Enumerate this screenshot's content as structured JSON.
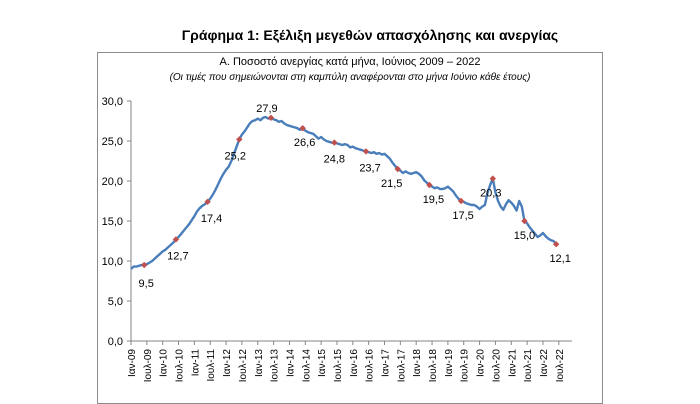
{
  "page": {
    "title": "Γράφημα 1: Εξέλιξη μεγεθών απασχόλησης και ανεργίας"
  },
  "chart_data": {
    "type": "line",
    "title": "Α. Ποσοστό ανεργίας κατά μήνα, Ιούνιος 2009 – 2022",
    "subtitle": "(Οι τιμές που σημειώνονται στη καμπύλη αναφέρονται στο μήνα Ιούνιο κάθε έτους)",
    "xlabel": "",
    "ylabel": "",
    "ylim": [
      0,
      30
    ],
    "yticks": [
      0,
      5,
      10,
      15,
      20,
      25,
      30
    ],
    "ytick_labels": [
      "0,0",
      "5,0",
      "10,0",
      "15,0",
      "20,0",
      "25,0",
      "30,0"
    ],
    "grid": false,
    "legend": "none",
    "line_color": "#4a7ebb",
    "marker_color": "#c0504d",
    "x_start": "Ιαν-09",
    "x_end": "Δεκ-22",
    "x_tick_labels": [
      "Ιαν-09",
      "Ιουλ-09",
      "Ιαν-10",
      "Ιουλ-10",
      "Ιαν-11",
      "Ιουλ-11",
      "Ιαν-12",
      "Ιουλ-12",
      "Ιαν-13",
      "Ιουλ-13",
      "Ιαν-14",
      "Ιουλ-14",
      "Ιαν-15",
      "Ιουλ-15",
      "Ιαν-16",
      "Ιουλ-16",
      "Ιαν-17",
      "Ιουλ-17",
      "Ιαν-18",
      "Ιουλ-18",
      "Ιαν-19",
      "Ιουλ-19",
      "Ιαν-20",
      "Ιουλ-20",
      "Ιαν-21",
      "Ιουλ-21",
      "Ιαν-22",
      "Ιουλ-22"
    ],
    "series": [
      {
        "values": [
          9.0,
          9.3,
          9.3,
          9.4,
          9.5,
          9.5,
          9.6,
          9.8,
          10.0,
          10.3,
          10.6,
          10.9,
          11.2,
          11.4,
          11.7,
          12.0,
          12.3,
          12.7,
          13.0,
          13.4,
          13.8,
          14.2,
          14.6,
          15.1,
          15.6,
          16.2,
          16.6,
          16.9,
          17.1,
          17.4,
          17.8,
          18.3,
          18.9,
          19.6,
          20.3,
          20.9,
          21.4,
          21.8,
          22.5,
          23.4,
          24.3,
          25.2,
          25.8,
          26.2,
          26.7,
          27.2,
          27.5,
          27.6,
          27.8,
          27.6,
          27.9,
          28.0,
          27.8,
          27.9,
          27.7,
          27.6,
          27.4,
          27.5,
          27.2,
          27.0,
          26.9,
          26.8,
          26.7,
          26.6,
          26.4,
          26.6,
          26.3,
          26.1,
          26.0,
          25.9,
          25.6,
          25.3,
          25.5,
          25.2,
          25.0,
          24.9,
          24.8,
          24.8,
          24.7,
          24.6,
          24.5,
          24.6,
          24.5,
          24.2,
          24.3,
          24.1,
          24.0,
          23.9,
          23.8,
          23.7,
          23.6,
          23.5,
          23.6,
          23.4,
          23.5,
          23.3,
          23.4,
          23.1,
          22.8,
          22.3,
          21.9,
          21.5,
          21.3,
          21.0,
          21.2,
          21.0,
          20.9,
          21.0,
          21.1,
          20.9,
          20.6,
          20.1,
          19.8,
          19.5,
          19.3,
          19.1,
          19.2,
          19.0,
          19.0,
          19.1,
          19.3,
          19.0,
          18.7,
          18.2,
          17.8,
          17.5,
          17.4,
          17.2,
          17.1,
          17.0,
          17.0,
          16.8,
          16.5,
          16.8,
          17.0,
          18.5,
          19.5,
          20.3,
          18.6,
          17.5,
          16.8,
          16.4,
          17.1,
          17.6,
          17.3,
          16.9,
          16.3,
          17.5,
          16.8,
          15.0,
          14.7,
          14.2,
          13.8,
          13.4,
          13.0,
          13.2,
          13.5,
          13.1,
          12.8,
          12.6,
          12.5,
          12.1
        ]
      }
    ],
    "june_markers": [
      {
        "month_index": 5,
        "value": 9.5,
        "label": "9,5"
      },
      {
        "month_index": 17,
        "value": 12.7,
        "label": "12,7"
      },
      {
        "month_index": 29,
        "value": 17.4,
        "label": "17,4"
      },
      {
        "month_index": 41,
        "value": 25.2,
        "label": "25,2"
      },
      {
        "month_index": 53,
        "value": 27.9,
        "label": "27,9"
      },
      {
        "month_index": 65,
        "value": 26.6,
        "label": "26,6"
      },
      {
        "month_index": 77,
        "value": 24.8,
        "label": "24,8"
      },
      {
        "month_index": 89,
        "value": 23.7,
        "label": "23,7"
      },
      {
        "month_index": 101,
        "value": 21.5,
        "label": "21,5"
      },
      {
        "month_index": 113,
        "value": 19.5,
        "label": "19,5"
      },
      {
        "month_index": 125,
        "value": 17.5,
        "label": "17,5"
      },
      {
        "month_index": 137,
        "value": 20.3,
        "label": "20,3"
      },
      {
        "month_index": 149,
        "value": 15.0,
        "label": "15,0"
      },
      {
        "month_index": 161,
        "value": 12.1,
        "label": "12,1"
      }
    ]
  }
}
